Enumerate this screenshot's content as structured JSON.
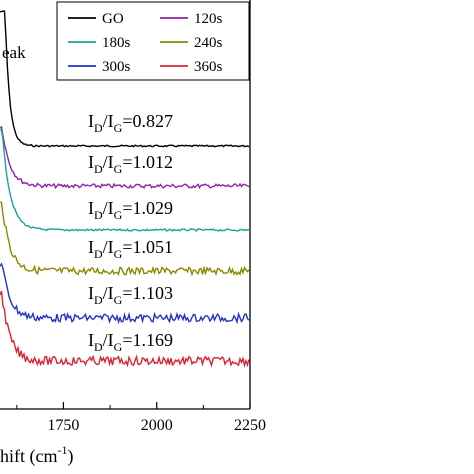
{
  "chart_data": {
    "type": "line",
    "xlabel_visible": "hift (cm",
    "xlabel_superscript": "-1",
    "xlabel_close": ")",
    "partial_label": "eak",
    "xlim": [
      1580,
      2250
    ],
    "xticks": [
      1750,
      2000,
      2250
    ],
    "grid": false,
    "legend_position": "top-right",
    "legend_columns": 2,
    "series": [
      {
        "name": "GO",
        "color": "#000000",
        "ratio": "0.827",
        "baseline": 0.0,
        "noise": 0.04,
        "peak": 3.2
      },
      {
        "name": "120s",
        "color": "#8e24aa",
        "ratio": "1.012",
        "baseline": -1.0,
        "noise": 0.1,
        "peak": 1.4
      },
      {
        "name": "180s",
        "color": "#1aa39a",
        "ratio": "1.029",
        "baseline": -2.0,
        "noise": 0.05,
        "peak": 2.4
      },
      {
        "name": "240s",
        "color": "#8a8a00",
        "ratio": "1.051",
        "baseline": -2.9,
        "noise": 0.18,
        "peak": 1.6
      },
      {
        "name": "300s",
        "color": "#2233cc",
        "ratio": "1.103",
        "baseline": -4.0,
        "noise": 0.2,
        "peak": 1.3
      },
      {
        "name": "360s",
        "color": "#dd2233",
        "ratio": "1.169",
        "baseline": -4.9,
        "noise": 0.22,
        "peak": 1.6
      }
    ]
  }
}
